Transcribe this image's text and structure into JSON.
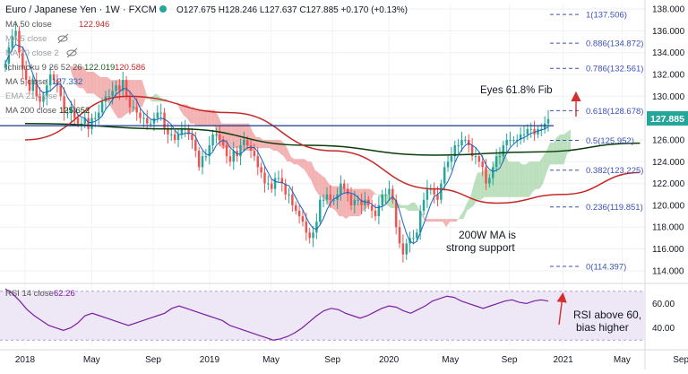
{
  "header": {
    "symbol": "Euro / Japanese Yen · 1W · FXCM",
    "ohlc": "O127.675 H128.246 L127.637 C127.885 +0.170 (+0.13%)"
  },
  "legends": [
    {
      "label": "MA 50 close",
      "value": "122.946",
      "color": "#c62828"
    },
    {
      "label": "MA 5 close",
      "value": "",
      "color": "#9aa0a6"
    },
    {
      "label": "MA 20 close 2",
      "value": "",
      "color": "#9aa0a6"
    },
    {
      "label": "Ichimoku 9 26 52 26",
      "value": "122.019",
      "value2": "120.586",
      "color": "#1b5e20"
    },
    {
      "label": "MA 5 close",
      "value": "127.332",
      "color": "#1565c0"
    },
    {
      "label": "EMA 21 close",
      "value": "",
      "color": "#9aa0a6"
    },
    {
      "label": "MA 200 close",
      "value": "125.652",
      "color": "#0b3d0b"
    }
  ],
  "annotations": {
    "fib_target": "Eyes 61.8% Fib",
    "support_line1": "200W MA is",
    "support_line2": "strong support",
    "rsi_line1": "RSI above 60,",
    "rsi_line2": "bias higher"
  },
  "rsi_header": {
    "label": "RSI 14 close",
    "value": "62.26"
  },
  "price_tag": "127.885",
  "colors": {
    "up_candle": "#26a69a",
    "down_candle": "#ef5350",
    "cloud_bull": "#a5d6a7",
    "cloud_bear": "#ef9a9a",
    "resistance_line": "#1a3a8a",
    "annotation_arrow": "#d32f2f",
    "rsi_line": "#7b1fa2",
    "rsi_band": "#ede7f6"
  },
  "chart_data": {
    "type": "candlestick",
    "title": "Euro / Japanese Yen · 1W · FXCM",
    "ylim": [
      113,
      138.5
    ],
    "y_ticks": [
      114,
      116,
      118,
      120,
      122,
      124,
      126,
      128,
      130,
      132,
      134,
      136,
      138
    ],
    "x_ticks": [
      {
        "label": "2018",
        "pos": 0
      },
      {
        "label": "May",
        "pos": 0.13
      },
      {
        "label": "Sep",
        "pos": 0.25
      },
      {
        "label": "2019",
        "pos": 0.36
      },
      {
        "label": "May",
        "pos": 0.48
      },
      {
        "label": "Sep",
        "pos": 0.6
      },
      {
        "label": "2020",
        "pos": 0.71
      },
      {
        "label": "May",
        "pos": 0.83
      },
      {
        "label": "Sep",
        "pos": 0.945
      },
      {
        "label": "2021",
        "pos": 1.05
      },
      {
        "label": "May",
        "pos": 1.165
      },
      {
        "label": "Sep",
        "pos": 1.28
      }
    ],
    "resistance_level": 127.3,
    "fib_levels": [
      {
        "label": "1(137.506)",
        "value": 137.506
      },
      {
        "label": "0.886(134.872)",
        "value": 134.872
      },
      {
        "label": "0.786(132.561)",
        "value": 132.561
      },
      {
        "label": "0.618(128.678)",
        "value": 128.678
      },
      {
        "label": "0.5(125.952)",
        "value": 125.952
      },
      {
        "label": "0.382(123.225)",
        "value": 123.225
      },
      {
        "label": "0.236(119.851)",
        "value": 119.851
      },
      {
        "label": "0(114.397)",
        "value": 114.397
      }
    ],
    "closes": [
      133.0,
      134.5,
      135.5,
      136.0,
      134.0,
      132.5,
      131.5,
      130.5,
      131.5,
      130.0,
      129.5,
      130.0,
      131.0,
      132.0,
      131.5,
      131.0,
      130.0,
      128.5,
      128.5,
      129.0,
      128.0,
      127.5,
      127.5,
      128.0,
      127.0,
      128.0,
      128.0,
      128.5,
      129.5,
      130.0,
      130.0,
      130.5,
      131.0,
      130.5,
      131.5,
      130.0,
      129.0,
      129.0,
      128.5,
      128.0,
      128.0,
      127.5,
      127.5,
      128.0,
      128.5,
      128.5,
      127.0,
      126.5,
      126.5,
      126.0,
      126.5,
      127.0,
      127.0,
      126.5,
      126.0,
      125.0,
      123.5,
      124.5,
      124.5,
      125.5,
      126.5,
      126.5,
      126.0,
      125.5,
      124.5,
      124.0,
      125.0,
      124.5,
      125.5,
      126.0,
      125.5,
      125.0,
      124.5,
      123.5,
      123.0,
      122.0,
      122.0,
      121.5,
      122.5,
      122.5,
      122.0,
      121.0,
      121.0,
      120.0,
      119.5,
      119.0,
      118.5,
      117.5,
      117.0,
      117.5,
      118.5,
      120.5,
      120.5,
      121.0,
      120.5,
      120.5,
      121.0,
      122.0,
      121.5,
      121.0,
      120.0,
      120.5,
      120.5,
      120.0,
      120.5,
      120.0,
      119.5,
      119.0,
      120.0,
      121.0,
      121.0,
      121.5,
      120.5,
      118.0,
      116.5,
      115.5,
      116.5,
      117.0,
      117.0,
      117.5,
      119.5,
      120.5,
      121.5,
      121.5,
      121.0,
      120.5,
      122.0,
      123.5,
      124.0,
      124.5,
      125.5,
      125.5,
      126.0,
      126.0,
      125.5,
      124.5,
      124.5,
      124.0,
      123.5,
      122.0,
      122.5,
      123.5,
      124.5,
      124.5,
      125.5,
      126.0,
      126.0,
      126.0,
      126.0,
      126.5,
      126.5,
      127.0,
      127.0,
      126.5,
      127.0,
      127.0,
      127.5,
      127.9
    ],
    "series": [
      {
        "name": "MA 200 close",
        "color": "#0b3d0b",
        "points": [
          [
            0,
            127.5
          ],
          [
            0.3,
            127.0
          ],
          [
            0.55,
            125.5
          ],
          [
            0.8,
            124.6
          ],
          [
            1.0,
            124.9
          ],
          [
            1.2,
            125.7
          ]
        ]
      },
      {
        "name": "MA 50 close",
        "color": "#c62828",
        "points": [
          [
            0,
            126.0
          ],
          [
            0.2,
            130.0
          ],
          [
            0.4,
            128.5
          ],
          [
            0.6,
            125.0
          ],
          [
            0.8,
            121.5
          ],
          [
            0.92,
            120.2
          ],
          [
            1.05,
            121.0
          ],
          [
            1.2,
            123.0
          ]
        ]
      }
    ],
    "rsi": {
      "title": "RSI 14 close",
      "last": 62.26,
      "y_ticks": [
        40,
        60
      ],
      "band": [
        30,
        70
      ],
      "values": [
        72,
        68,
        62,
        55,
        50,
        46,
        42,
        40,
        38,
        40,
        44,
        50,
        52,
        50,
        48,
        46,
        44,
        42,
        44,
        46,
        48,
        50,
        52,
        56,
        58,
        56,
        54,
        52,
        50,
        48,
        46,
        42,
        40,
        38,
        36,
        34,
        32,
        30,
        31,
        33,
        36,
        40,
        45,
        50,
        54,
        56,
        55,
        52,
        50,
        48,
        50,
        53,
        56,
        58,
        57,
        54,
        52,
        55,
        58,
        62,
        64,
        66,
        65,
        62,
        60,
        58,
        56,
        58,
        60,
        62,
        63,
        61,
        60,
        62,
        63,
        62
      ]
    }
  }
}
